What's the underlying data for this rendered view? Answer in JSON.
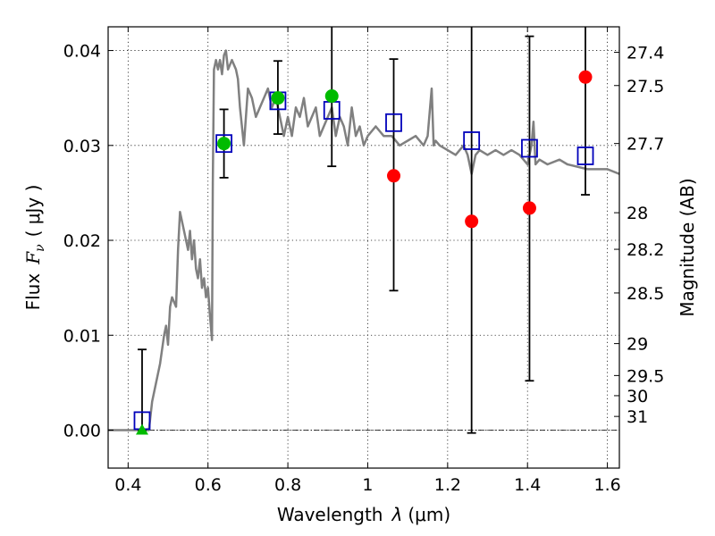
{
  "chart_data": {
    "type": "scatter",
    "title": "",
    "xlabel_main": "Wavelength",
    "xlabel_symbol": "λ",
    "xlabel_unit": "(μm)",
    "ylabel_main": "Flux",
    "ylabel_symbol": "F",
    "ylabel_sub": "ν",
    "ylabel_unit": "( μJy )",
    "y2label": "Magnitude (AB)",
    "xlim": [
      0.35,
      1.63
    ],
    "ylim": [
      -0.004,
      0.0425
    ],
    "grid": true,
    "legend": "none",
    "x_ticks": [
      {
        "value": 0.4,
        "label": "0.4"
      },
      {
        "value": 0.6,
        "label": "0.6"
      },
      {
        "value": 0.8,
        "label": "0.8"
      },
      {
        "value": 1.0,
        "label": "1"
      },
      {
        "value": 1.2,
        "label": "1.2"
      },
      {
        "value": 1.4,
        "label": "1.4"
      },
      {
        "value": 1.6,
        "label": "1.6"
      }
    ],
    "y_ticks": [
      {
        "value": 0.0,
        "label": "0.00"
      },
      {
        "value": 0.01,
        "label": "0.01"
      },
      {
        "value": 0.02,
        "label": "0.02"
      },
      {
        "value": 0.03,
        "label": "0.03"
      },
      {
        "value": 0.04,
        "label": "0.04"
      }
    ],
    "mag_ticks": [
      {
        "value": 27.4,
        "label": "27.4"
      },
      {
        "value": 27.5,
        "label": "27.5"
      },
      {
        "value": 27.7,
        "label": "27.7"
      },
      {
        "value": 28.0,
        "label": "28"
      },
      {
        "value": 28.2,
        "label": "28.2"
      },
      {
        "value": 28.5,
        "label": "28.5"
      },
      {
        "value": 29.0,
        "label": "29"
      },
      {
        "value": 29.5,
        "label": "29.5"
      },
      {
        "value": 30.0,
        "label": "30"
      },
      {
        "value": 31.0,
        "label": "31"
      }
    ],
    "sed_model": {
      "color": "#808080",
      "x": [
        0.35,
        0.44,
        0.452,
        0.46,
        0.48,
        0.49,
        0.495,
        0.5,
        0.505,
        0.51,
        0.52,
        0.525,
        0.53,
        0.54,
        0.55,
        0.555,
        0.56,
        0.565,
        0.57,
        0.575,
        0.58,
        0.585,
        0.59,
        0.595,
        0.6,
        0.605,
        0.61,
        0.612,
        0.615,
        0.62,
        0.625,
        0.63,
        0.635,
        0.64,
        0.645,
        0.65,
        0.66,
        0.67,
        0.675,
        0.68,
        0.69,
        0.7,
        0.71,
        0.72,
        0.73,
        0.74,
        0.75,
        0.76,
        0.77,
        0.78,
        0.79,
        0.8,
        0.81,
        0.82,
        0.83,
        0.84,
        0.85,
        0.86,
        0.87,
        0.88,
        0.89,
        0.9,
        0.91,
        0.92,
        0.93,
        0.94,
        0.95,
        0.96,
        0.97,
        0.98,
        0.99,
        1.0,
        1.02,
        1.04,
        1.06,
        1.08,
        1.1,
        1.12,
        1.14,
        1.15,
        1.16,
        1.165,
        1.17,
        1.18,
        1.2,
        1.22,
        1.24,
        1.25,
        1.26,
        1.27,
        1.28,
        1.3,
        1.32,
        1.34,
        1.36,
        1.38,
        1.4,
        1.41,
        1.415,
        1.42,
        1.43,
        1.45,
        1.48,
        1.5,
        1.55,
        1.6,
        1.63
      ],
      "y": [
        0.0,
        0.0,
        0.0,
        0.003,
        0.007,
        0.01,
        0.011,
        0.009,
        0.013,
        0.014,
        0.013,
        0.019,
        0.023,
        0.021,
        0.019,
        0.021,
        0.018,
        0.02,
        0.017,
        0.016,
        0.018,
        0.015,
        0.016,
        0.014,
        0.015,
        0.012,
        0.0095,
        0.026,
        0.038,
        0.039,
        0.038,
        0.039,
        0.0375,
        0.0395,
        0.04,
        0.038,
        0.039,
        0.038,
        0.037,
        0.034,
        0.03,
        0.036,
        0.035,
        0.033,
        0.034,
        0.035,
        0.036,
        0.034,
        0.035,
        0.033,
        0.031,
        0.033,
        0.031,
        0.034,
        0.033,
        0.035,
        0.032,
        0.033,
        0.034,
        0.031,
        0.032,
        0.033,
        0.034,
        0.031,
        0.033,
        0.032,
        0.03,
        0.034,
        0.031,
        0.032,
        0.03,
        0.031,
        0.032,
        0.031,
        0.031,
        0.03,
        0.0305,
        0.031,
        0.03,
        0.031,
        0.036,
        0.03,
        0.0305,
        0.03,
        0.0295,
        0.029,
        0.03,
        0.029,
        0.027,
        0.029,
        0.0295,
        0.029,
        0.0295,
        0.029,
        0.0295,
        0.029,
        0.028,
        0.03,
        0.0325,
        0.028,
        0.0285,
        0.028,
        0.0285,
        0.028,
        0.0275,
        0.0275,
        0.027
      ]
    },
    "model_points": {
      "color": "#0000bb",
      "x": [
        0.435,
        0.64,
        0.775,
        0.91,
        1.065,
        1.26,
        1.405,
        1.545
      ],
      "y": [
        0.001,
        0.0302,
        0.0347,
        0.0337,
        0.0324,
        0.0305,
        0.0297,
        0.0289
      ]
    },
    "detections": {
      "color": "#00bb00",
      "x": [
        0.64,
        0.775,
        0.91
      ],
      "y": [
        0.0302,
        0.035,
        0.0352
      ],
      "err_low": [
        0.0036,
        0.0038,
        0.0074
      ],
      "err_high": [
        0.0036,
        0.0039,
        0.0098
      ]
    },
    "upper_triangle": {
      "color": "#00bb00",
      "x": [
        0.435
      ],
      "y": [
        0.0
      ],
      "err_low": [
        0.0
      ],
      "err_high": [
        0.0085
      ]
    },
    "nondetections": {
      "color": "#ff0000",
      "x": [
        1.065,
        1.26,
        1.405,
        1.545
      ],
      "y": [
        0.0268,
        0.022,
        0.0234,
        0.0372
      ],
      "err_low": [
        0.0121,
        0.0223,
        0.0182,
        0.0124
      ],
      "err_high": [
        0.0123,
        0.021,
        0.0181,
        0.008
      ]
    }
  }
}
